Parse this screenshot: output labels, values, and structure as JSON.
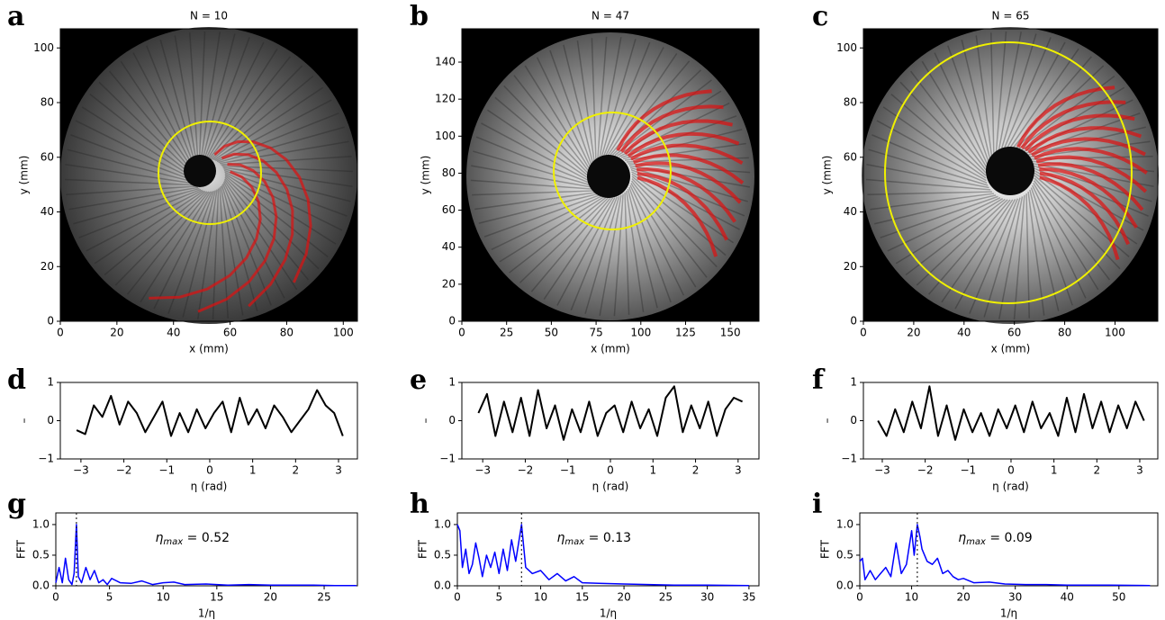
{
  "chart_data": [
    {
      "type": "image",
      "panel": "a",
      "title": "N = 10",
      "xlabel": "x (mm)",
      "ylabel": "y (mm)",
      "xlim": [
        0,
        105
      ],
      "ylim": [
        0,
        107
      ],
      "xticks": [
        0,
        20,
        40,
        60,
        80,
        100
      ],
      "yticks": [
        0,
        20,
        40,
        60,
        80,
        100
      ]
    },
    {
      "type": "image",
      "panel": "b",
      "title": "N = 47",
      "xlabel": "x (mm)",
      "ylabel": "y (mm)",
      "xlim": [
        0,
        166
      ],
      "ylim": [
        0,
        158
      ],
      "xticks": [
        0,
        25,
        50,
        75,
        100,
        125,
        150
      ],
      "yticks": [
        0,
        20,
        40,
        60,
        80,
        100,
        120,
        140
      ]
    },
    {
      "type": "image",
      "panel": "c",
      "title": "N = 65",
      "xlabel": "x (mm)",
      "ylabel": "y (mm)",
      "xlim": [
        0,
        117
      ],
      "ylim": [
        0,
        107
      ],
      "xticks": [
        0,
        20,
        40,
        60,
        80,
        100
      ],
      "yticks": [
        0,
        20,
        40,
        60,
        80,
        100
      ]
    },
    {
      "type": "line",
      "panel": "d",
      "xlabel": "η (rad)",
      "ylabel": "–",
      "color": "#000000",
      "xlim": [
        -3.48,
        3.44
      ],
      "ylim": [
        -1,
        1
      ],
      "xticks": [
        {
          "value": -3,
          "label": "−3"
        },
        {
          "value": -2,
          "label": "−2"
        },
        {
          "value": -1,
          "label": "−1"
        },
        0,
        1,
        2,
        3
      ],
      "yticks": [
        {
          "value": -1,
          "label": "−1"
        },
        0,
        1
      ],
      "x": [
        -3.1,
        -2.9,
        -2.7,
        -2.5,
        -2.3,
        -2.1,
        -1.9,
        -1.7,
        -1.5,
        -1.3,
        -1.1,
        -0.9,
        -0.7,
        -0.5,
        -0.3,
        -0.1,
        0.1,
        0.3,
        0.5,
        0.7,
        0.9,
        1.1,
        1.3,
        1.5,
        1.7,
        1.9,
        2.1,
        2.3,
        2.5,
        2.7,
        2.9,
        3.1
      ],
      "values": [
        -0.25,
        -0.35,
        0.4,
        0.1,
        0.65,
        -0.1,
        0.5,
        0.2,
        -0.3,
        0.1,
        0.5,
        -0.4,
        0.2,
        -0.3,
        0.3,
        -0.2,
        0.2,
        0.5,
        -0.3,
        0.6,
        -0.1,
        0.3,
        -0.2,
        0.4,
        0.1,
        -0.3,
        0.0,
        0.3,
        0.8,
        0.4,
        0.2,
        -0.4
      ]
    },
    {
      "type": "line",
      "panel": "e",
      "xlabel": "η (rad)",
      "ylabel": "–",
      "color": "#000000",
      "xlim": [
        -3.49,
        3.49
      ],
      "ylim": [
        -1,
        1
      ],
      "xticks": [
        {
          "value": -3,
          "label": "−3"
        },
        {
          "value": -2,
          "label": "−2"
        },
        {
          "value": -1,
          "label": "−1"
        },
        0,
        1,
        2,
        3
      ],
      "yticks": [
        {
          "value": -1,
          "label": "−1"
        },
        0,
        1
      ],
      "x": [
        -3.1,
        -2.9,
        -2.7,
        -2.5,
        -2.3,
        -2.1,
        -1.9,
        -1.7,
        -1.5,
        -1.3,
        -1.1,
        -0.9,
        -0.7,
        -0.5,
        -0.3,
        -0.1,
        0.1,
        0.3,
        0.5,
        0.7,
        0.9,
        1.1,
        1.3,
        1.5,
        1.7,
        1.9,
        2.1,
        2.3,
        2.5,
        2.7,
        2.9,
        3.1
      ],
      "values": [
        0.2,
        0.7,
        -0.4,
        0.5,
        -0.3,
        0.6,
        -0.4,
        0.8,
        -0.2,
        0.4,
        -0.5,
        0.3,
        -0.3,
        0.5,
        -0.4,
        0.2,
        0.4,
        -0.3,
        0.5,
        -0.2,
        0.3,
        -0.4,
        0.6,
        0.9,
        -0.3,
        0.4,
        -0.2,
        0.5,
        -0.4,
        0.3,
        0.6,
        0.5
      ]
    },
    {
      "type": "line",
      "panel": "f",
      "xlabel": "η (rad)",
      "ylabel": "–",
      "color": "#000000",
      "xlim": [
        -3.44,
        3.42
      ],
      "ylim": [
        -1,
        1
      ],
      "xticks": [
        {
          "value": -3,
          "label": "−3"
        },
        {
          "value": -2,
          "label": "−2"
        },
        {
          "value": -1,
          "label": "−1"
        },
        0,
        1,
        2,
        3
      ],
      "yticks": [
        {
          "value": -1,
          "label": "−1"
        },
        0,
        1
      ],
      "x": [
        -3.1,
        -2.9,
        -2.7,
        -2.5,
        -2.3,
        -2.1,
        -1.9,
        -1.7,
        -1.5,
        -1.3,
        -1.1,
        -0.9,
        -0.7,
        -0.5,
        -0.3,
        -0.1,
        0.1,
        0.3,
        0.5,
        0.7,
        0.9,
        1.1,
        1.3,
        1.5,
        1.7,
        1.9,
        2.1,
        2.3,
        2.5,
        2.7,
        2.9,
        3.1
      ],
      "values": [
        0.0,
        -0.4,
        0.3,
        -0.3,
        0.5,
        -0.2,
        0.9,
        -0.4,
        0.4,
        -0.5,
        0.3,
        -0.3,
        0.2,
        -0.4,
        0.3,
        -0.2,
        0.4,
        -0.3,
        0.5,
        -0.2,
        0.2,
        -0.4,
        0.6,
        -0.3,
        0.7,
        -0.2,
        0.5,
        -0.3,
        0.4,
        -0.2,
        0.5,
        0.0
      ]
    },
    {
      "type": "spectrum",
      "panel": "g",
      "xlabel": "1/η",
      "ylabel": "FFT",
      "color": "#0000ff",
      "xlim": [
        0,
        28.1
      ],
      "ylim": [
        0,
        1.19
      ],
      "xticks": [
        0,
        5,
        10,
        15,
        20,
        25
      ],
      "yticks": [
        {
          "value": 0,
          "label": "0.0"
        },
        {
          "value": 0.5,
          "label": "0.5"
        },
        {
          "value": 1,
          "label": "1.0"
        }
      ],
      "annotation": {
        "symbol": "η",
        "subscript": "max",
        "text": " = 0.52"
      },
      "marker_x": 1.92,
      "x": [
        0,
        0.3,
        0.6,
        0.9,
        1.2,
        1.5,
        1.7,
        1.92,
        2.1,
        2.4,
        2.8,
        3.2,
        3.6,
        4,
        4.4,
        4.8,
        5.2,
        6,
        7,
        8,
        9,
        10,
        11,
        12,
        14,
        16,
        18,
        20,
        22,
        24,
        26,
        28
      ],
      "values": [
        0.05,
        0.3,
        0.05,
        0.45,
        0.1,
        0.02,
        0.2,
        1.0,
        0.15,
        0.05,
        0.3,
        0.1,
        0.25,
        0.05,
        0.1,
        0.02,
        0.12,
        0.05,
        0.04,
        0.08,
        0.02,
        0.05,
        0.06,
        0.02,
        0.03,
        0.01,
        0.02,
        0.01,
        0.01,
        0.01,
        0.005,
        0.005
      ]
    },
    {
      "type": "spectrum",
      "panel": "h",
      "xlabel": "1/η",
      "ylabel": "FFT",
      "color": "#0000ff",
      "xlim": [
        0,
        36.2
      ],
      "ylim": [
        0,
        1.19
      ],
      "xticks": [
        0,
        5,
        10,
        15,
        20,
        25,
        30,
        35
      ],
      "yticks": [
        {
          "value": 0,
          "label": "0.0"
        },
        {
          "value": 0.5,
          "label": "0.5"
        },
        {
          "value": 1,
          "label": "1.0"
        }
      ],
      "annotation": {
        "symbol": "η",
        "subscript": "max",
        "text": " = 0.13"
      },
      "marker_x": 7.7,
      "x": [
        0,
        0.3,
        0.6,
        1,
        1.4,
        1.8,
        2.2,
        2.6,
        3,
        3.5,
        4,
        4.5,
        5,
        5.5,
        6,
        6.5,
        7,
        7.7,
        8.2,
        9,
        10,
        11,
        12,
        13,
        14,
        15,
        17,
        20,
        23,
        26,
        30,
        35
      ],
      "values": [
        1.0,
        0.9,
        0.3,
        0.6,
        0.2,
        0.35,
        0.7,
        0.45,
        0.15,
        0.5,
        0.3,
        0.55,
        0.2,
        0.6,
        0.25,
        0.75,
        0.4,
        1.0,
        0.3,
        0.2,
        0.25,
        0.1,
        0.2,
        0.08,
        0.15,
        0.05,
        0.04,
        0.03,
        0.02,
        0.01,
        0.01,
        0.005
      ]
    },
    {
      "type": "spectrum",
      "panel": "i",
      "xlabel": "1/η",
      "ylabel": "FFT",
      "color": "#0000ff",
      "xlim": [
        0,
        57.5
      ],
      "ylim": [
        0,
        1.19
      ],
      "xticks": [
        0,
        10,
        20,
        30,
        40,
        50
      ],
      "yticks": [
        {
          "value": 0,
          "label": "0.0"
        },
        {
          "value": 0.5,
          "label": "0.5"
        },
        {
          "value": 1,
          "label": "1.0"
        }
      ],
      "annotation": {
        "symbol": "η",
        "subscript": "max",
        "text": " = 0.09"
      },
      "marker_x": 11.1,
      "x": [
        0,
        0.5,
        1,
        2,
        3,
        4,
        5,
        6,
        7,
        8,
        9,
        10,
        10.5,
        11.1,
        11.6,
        12,
        13,
        14,
        15,
        16,
        17,
        18,
        19,
        20,
        22,
        25,
        28,
        32,
        36,
        40,
        48,
        56
      ],
      "values": [
        0.4,
        0.45,
        0.1,
        0.25,
        0.1,
        0.2,
        0.3,
        0.15,
        0.7,
        0.2,
        0.35,
        0.9,
        0.5,
        1.0,
        0.8,
        0.6,
        0.4,
        0.35,
        0.45,
        0.2,
        0.25,
        0.15,
        0.1,
        0.12,
        0.05,
        0.06,
        0.03,
        0.02,
        0.02,
        0.01,
        0.01,
        0.005
      ]
    }
  ]
}
